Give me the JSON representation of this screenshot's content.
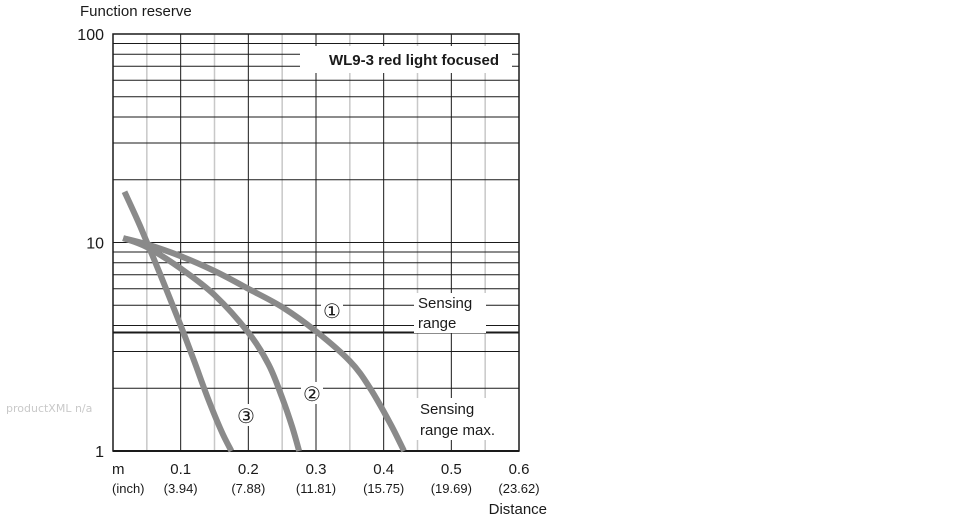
{
  "watermark": "productXML n/a",
  "chart_data": {
    "type": "line",
    "title": "WL9-3 red light focused",
    "ylabel": "Function reserve",
    "xlabel": "Distance",
    "x_unit": "m",
    "x_unit_alt": "(inch)",
    "xlim": [
      0,
      0.6
    ],
    "ylim": [
      1,
      100
    ],
    "y_scale": "log",
    "grid": true,
    "x_ticks": [
      {
        "value": 0.1,
        "label": "0.1",
        "sub": "(3.94)"
      },
      {
        "value": 0.2,
        "label": "0.2",
        "sub": "(7.88)"
      },
      {
        "value": 0.3,
        "label": "0.3",
        "sub": "(11.81)"
      },
      {
        "value": 0.4,
        "label": "0.4",
        "sub": "(15.75)"
      },
      {
        "value": 0.5,
        "label": "0.5",
        "sub": "(19.69)"
      },
      {
        "value": 0.6,
        "label": "0.6",
        "sub": "(23.62)"
      }
    ],
    "y_ticks": [
      {
        "value": 1,
        "label": "1"
      },
      {
        "value": 10,
        "label": "10"
      },
      {
        "value": 100,
        "label": "100"
      }
    ],
    "series": [
      {
        "name": "①",
        "x": [
          0.015,
          0.05,
          0.1,
          0.15,
          0.2,
          0.25,
          0.3,
          0.35,
          0.38,
          0.41,
          0.43
        ],
        "y": [
          10.5,
          9.8,
          8.6,
          7.3,
          6.0,
          4.9,
          3.75,
          2.7,
          2.0,
          1.35,
          1.0
        ]
      },
      {
        "name": "②",
        "x": [
          0.015,
          0.05,
          0.1,
          0.15,
          0.2,
          0.23,
          0.25,
          0.265,
          0.275
        ],
        "y": [
          10.5,
          9.5,
          7.5,
          5.6,
          3.7,
          2.6,
          1.8,
          1.3,
          1.0
        ]
      },
      {
        "name": "③",
        "x": [
          0.017,
          0.04,
          0.07,
          0.1,
          0.12,
          0.14,
          0.16,
          0.175
        ],
        "y": [
          17.5,
          12.0,
          7.0,
          4.0,
          2.7,
          1.8,
          1.25,
          1.0
        ]
      }
    ],
    "reference_lines": [
      {
        "y": 3.7,
        "label": "Sensing range"
      },
      {
        "y": 1.0,
        "label": "Sensing range max."
      }
    ],
    "colors": {
      "curve": "#8a8a8a",
      "grid": "#1a1a1a",
      "minor_grid": "#c8c8c8"
    }
  }
}
